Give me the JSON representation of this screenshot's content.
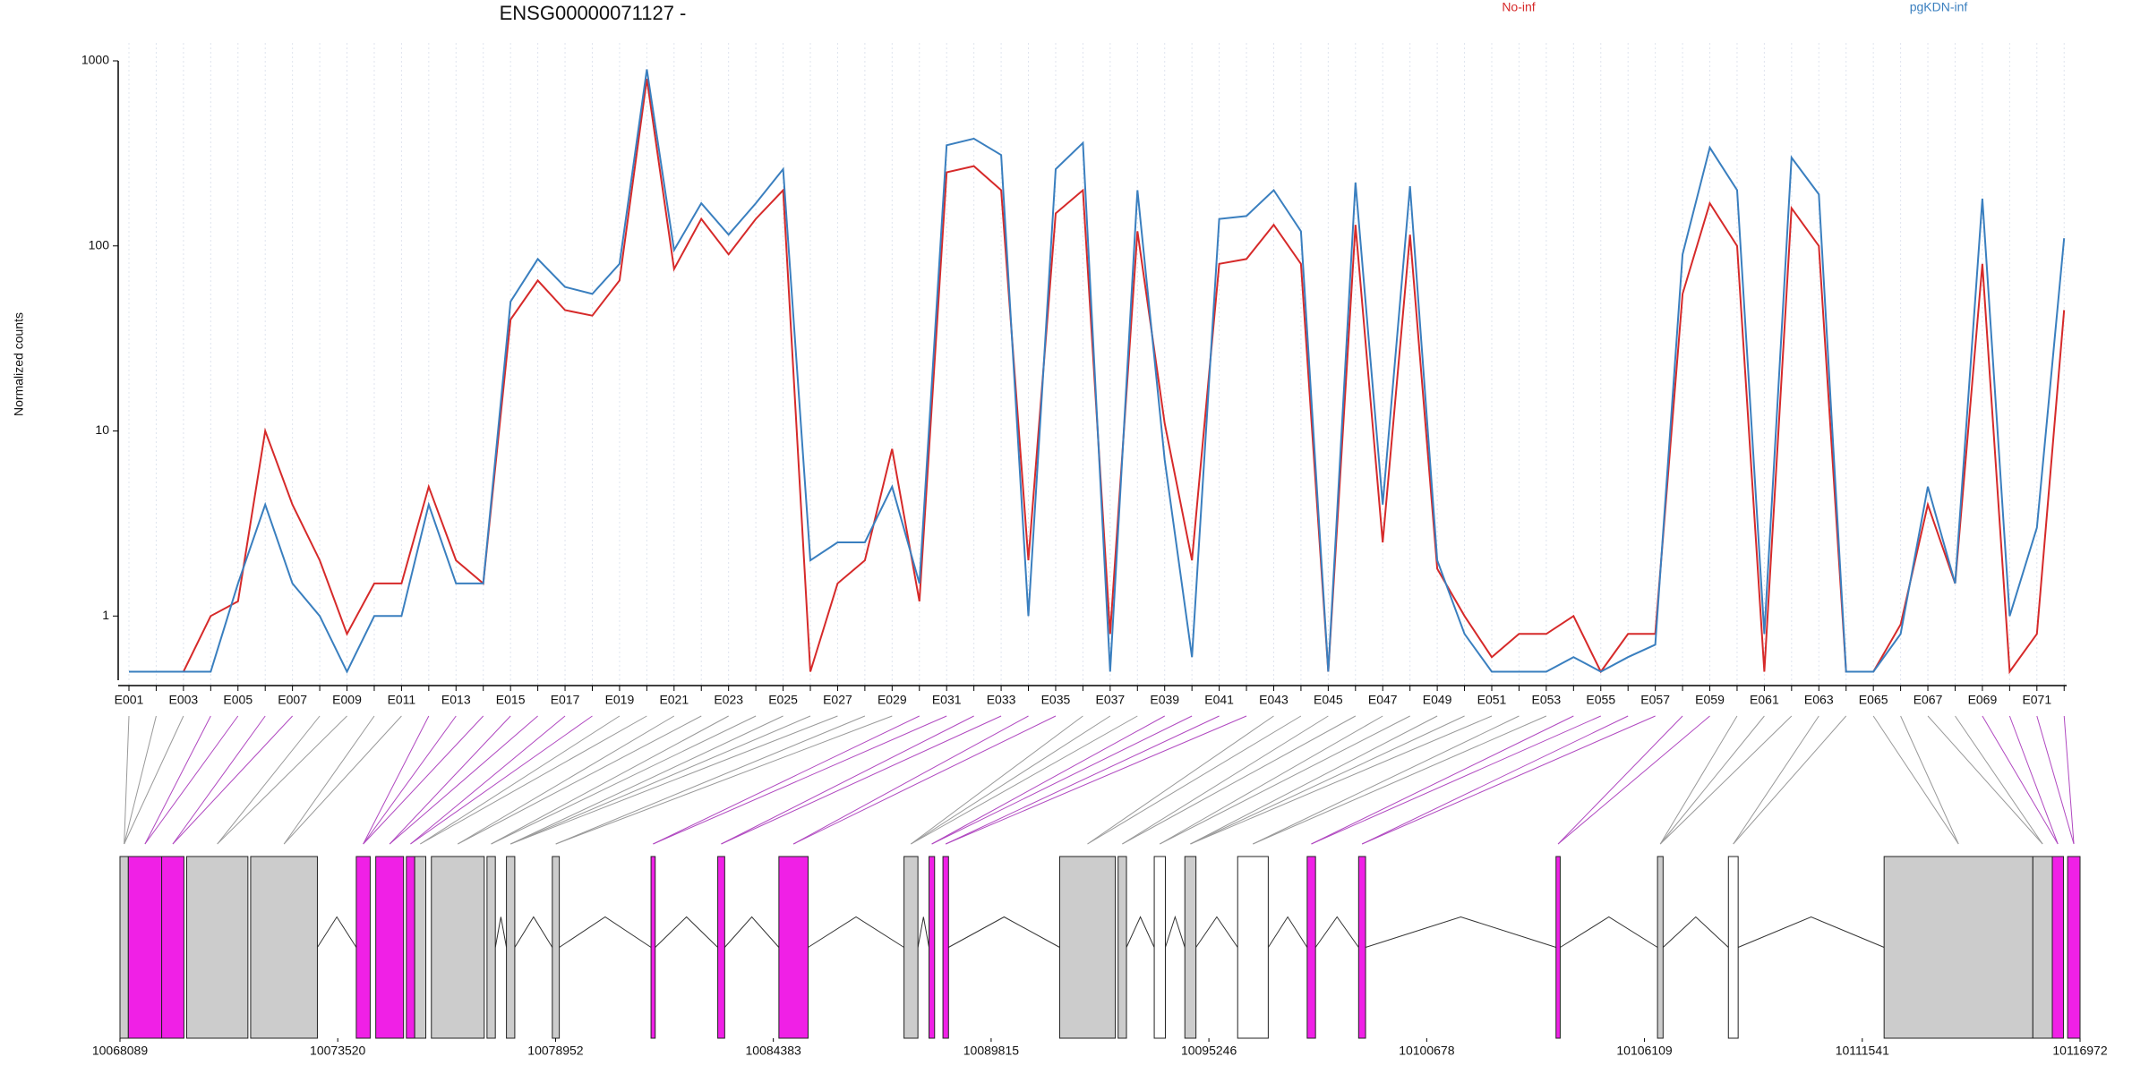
{
  "chart_data": [
    {
      "type": "line",
      "title": "ENSG00000071127 -",
      "y_label": "Normalized counts",
      "log_scale": true,
      "grid": true,
      "categories": [
        "E001",
        null,
        "E003",
        null,
        "E005",
        null,
        "E007",
        null,
        "E009",
        null,
        "E011",
        null,
        "E013",
        null,
        "E015",
        null,
        "E017",
        null,
        "E019",
        null,
        "E021",
        null,
        "E023",
        null,
        "E025",
        null,
        "E027",
        null,
        "E029",
        null,
        "E031",
        null,
        "E033",
        null,
        "E035",
        null,
        "E037",
        null,
        "E039",
        null,
        "E041",
        null,
        "E043",
        null,
        "E045",
        null,
        "E047",
        null,
        "E049",
        null,
        "E051",
        null,
        "E053",
        null,
        "E055",
        null,
        "E057",
        null,
        "E059",
        null,
        "E061",
        null,
        "E063",
        null,
        "E065",
        null,
        "E067",
        null,
        "E069",
        null,
        "E071",
        null
      ],
      "series": [
        {
          "name": "No-inf",
          "color": "#d62a2a",
          "values": [
            0.5,
            0.5,
            0.5,
            1,
            1.2,
            10,
            4,
            2,
            0.8,
            1.5,
            1.5,
            5,
            2,
            1.5,
            40,
            65,
            45,
            42,
            65,
            800,
            75,
            140,
            90,
            140,
            200,
            0.5,
            1.5,
            2,
            8,
            1.2,
            250,
            270,
            200,
            2,
            150,
            200,
            0.8,
            120,
            11,
            2,
            80,
            85,
            130,
            80,
            0.5,
            130,
            2.5,
            115,
            1.8,
            1,
            0.6,
            0.8,
            0.8,
            1,
            0.5,
            0.8,
            0.8,
            55,
            170,
            100,
            0.5,
            160,
            100,
            0.5,
            0.5,
            0.9,
            4,
            1.5,
            80,
            0.5,
            0.8,
            45
          ]
        },
        {
          "name": "pgKDN-inf",
          "color": "#3a7fbf",
          "values": [
            0.5,
            0.5,
            0.5,
            0.5,
            1.5,
            4,
            1.5,
            1,
            0.5,
            1,
            1,
            4,
            1.5,
            1.5,
            50,
            85,
            60,
            55,
            80,
            900,
            95,
            170,
            115,
            170,
            260,
            2,
            2.5,
            2.5,
            5,
            1.5,
            350,
            380,
            310,
            1,
            260,
            360,
            0.5,
            200,
            7,
            0.6,
            140,
            145,
            200,
            120,
            0.5,
            220,
            4,
            210,
            2,
            0.8,
            0.5,
            0.5,
            0.5,
            0.6,
            0.5,
            0.6,
            0.7,
            90,
            340,
            200,
            0.8,
            300,
            190,
            0.5,
            0.5,
            0.8,
            5,
            1.5,
            180,
            1,
            3,
            110
          ]
        }
      ],
      "ylim": [
        0.45,
        1000
      ],
      "yticks": [
        1,
        10,
        100,
        1000
      ]
    },
    {
      "type": "gene-model",
      "xlim": [
        10068089,
        10116972
      ],
      "xticks": [
        10068089,
        10073520,
        10078952,
        10084383,
        10089815,
        10095246,
        10100678,
        10106109,
        10111541,
        10116972
      ],
      "exons": [
        {
          "start": 10068089,
          "end": 10068297,
          "color": "#cccccc"
        },
        {
          "start": 10068297,
          "end": 10069129,
          "color": "#f020e6"
        },
        {
          "start": 10069129,
          "end": 10069684,
          "color": "#f020e6"
        },
        {
          "start": 10069753,
          "end": 10071279,
          "color": "#cccccc"
        },
        {
          "start": 10071348,
          "end": 10073012,
          "color": "#cccccc"
        },
        {
          "start": 10073982,
          "end": 10074329,
          "color": "#f020e6"
        },
        {
          "start": 10074468,
          "end": 10075161,
          "color": "#f020e6"
        },
        {
          "start": 10075231,
          "end": 10075439,
          "color": "#f020e6"
        },
        {
          "start": 10075439,
          "end": 10075716,
          "color": "#cccccc"
        },
        {
          "start": 10075855,
          "end": 10077173,
          "color": "#cccccc"
        },
        {
          "start": 10077242,
          "end": 10077450,
          "color": "#cccccc"
        },
        {
          "start": 10077727,
          "end": 10077935,
          "color": "#cccccc"
        },
        {
          "start": 10078871,
          "end": 10079045,
          "color": "#cccccc"
        },
        {
          "start": 10081333,
          "end": 10081437,
          "color": "#f020e6"
        },
        {
          "start": 10082997,
          "end": 10083170,
          "color": "#f020e6"
        },
        {
          "start": 10084522,
          "end": 10085250,
          "color": "#f020e6"
        },
        {
          "start": 10087642,
          "end": 10087989,
          "color": "#cccccc"
        },
        {
          "start": 10088266,
          "end": 10088405,
          "color": "#f020e6"
        },
        {
          "start": 10088613,
          "end": 10088752,
          "color": "#f020e6"
        },
        {
          "start": 10091525,
          "end": 10092912,
          "color": "#cccccc"
        },
        {
          "start": 10092982,
          "end": 10093190,
          "color": "#cccccc"
        },
        {
          "start": 10093883,
          "end": 10094160,
          "color": "#ffffff"
        },
        {
          "start": 10094646,
          "end": 10094923,
          "color": "#cccccc"
        },
        {
          "start": 10095963,
          "end": 10096726,
          "color": "#ffffff"
        },
        {
          "start": 10097697,
          "end": 10097905,
          "color": "#f020e6"
        },
        {
          "start": 10098980,
          "end": 10099153,
          "color": "#f020e6"
        },
        {
          "start": 10103903,
          "end": 10104007,
          "color": "#f020e6"
        },
        {
          "start": 10106434,
          "end": 10106573,
          "color": "#cccccc"
        },
        {
          "start": 10108202,
          "end": 10108445,
          "color": "#ffffff"
        },
        {
          "start": 10112085,
          "end": 10115795,
          "color": "#cccccc"
        },
        {
          "start": 10115795,
          "end": 10116280,
          "color": "#cccccc"
        },
        {
          "start": 10116280,
          "end": 10116558,
          "color": "#f020e6"
        },
        {
          "start": 10116662,
          "end": 10116972,
          "color": "#f020e6"
        }
      ]
    }
  ]
}
